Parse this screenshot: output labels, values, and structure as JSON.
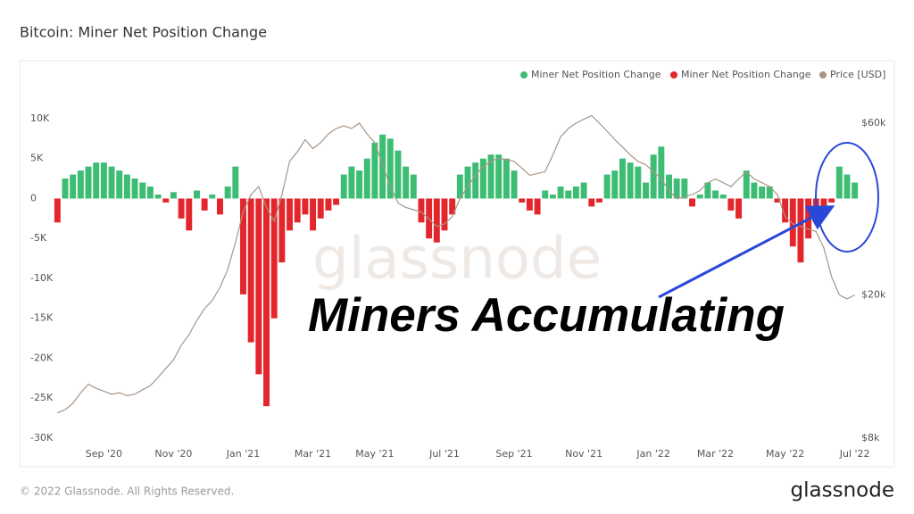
{
  "chart_data": {
    "type": "bar",
    "title": "Bitcoin: Miner Net Position Change",
    "watermark": "glassnode",
    "annotation": "Miners Accumulating",
    "footer": "© 2022 Glassnode. All Rights Reserved.",
    "logo": "glassnode",
    "legend": "top-right",
    "grid": false,
    "categories": [
      null,
      null,
      null,
      null,
      null,
      null,
      "Sep '20",
      null,
      null,
      null,
      null,
      null,
      null,
      null,
      null,
      "Nov '20",
      null,
      null,
      null,
      null,
      null,
      null,
      null,
      null,
      "Jan '21",
      null,
      null,
      null,
      null,
      null,
      null,
      null,
      null,
      "Mar '21",
      null,
      null,
      null,
      null,
      null,
      null,
      null,
      "May '21",
      null,
      null,
      null,
      null,
      null,
      null,
      null,
      null,
      "Jul '21",
      null,
      null,
      null,
      null,
      null,
      null,
      null,
      null,
      "Sep '21",
      null,
      null,
      null,
      null,
      null,
      null,
      null,
      null,
      "Nov '21",
      null,
      null,
      null,
      null,
      null,
      null,
      null,
      null,
      "Jan '22",
      null,
      null,
      null,
      null,
      null,
      null,
      null,
      "Mar '22",
      null,
      null,
      null,
      null,
      null,
      null,
      null,
      null,
      "May '22",
      null,
      null,
      null,
      null,
      null,
      null,
      null,
      null,
      "Jul '22"
    ],
    "series": [
      {
        "name": "Miner Net Position Change",
        "color": "#3dbc74",
        "values": [
          null,
          2500,
          3000,
          3500,
          4000,
          4500,
          4500,
          4000,
          3500,
          3000,
          2500,
          2000,
          1500,
          500,
          null,
          800,
          null,
          null,
          1000,
          null,
          500,
          null,
          1500,
          4000,
          null,
          null,
          null,
          null,
          null,
          null,
          null,
          null,
          null,
          null,
          null,
          null,
          null,
          3000,
          4000,
          3500,
          5000,
          7000,
          8000,
          7500,
          6000,
          4000,
          3000,
          null,
          null,
          null,
          null,
          null,
          3000,
          4000,
          4500,
          5000,
          5500,
          5500,
          5000,
          3500,
          null,
          null,
          null,
          1000,
          500,
          1500,
          1000,
          1500,
          2000,
          null,
          null,
          3000,
          3500,
          5000,
          4500,
          4000,
          2000,
          5500,
          6500,
          3000,
          2500,
          2500,
          null,
          500,
          2000,
          1000,
          500,
          null,
          null,
          3500,
          2000,
          1500,
          1500,
          null,
          null,
          null,
          null,
          null,
          null,
          null,
          null,
          4000,
          3000,
          2000
        ]
      },
      {
        "name": "Miner Net Position Change",
        "color": "#e3262b",
        "values": [
          -3000,
          null,
          null,
          null,
          null,
          null,
          null,
          null,
          null,
          null,
          null,
          null,
          null,
          null,
          -500,
          null,
          -2500,
          -4000,
          null,
          -1500,
          null,
          -2000,
          null,
          null,
          -12000,
          -18000,
          -22000,
          -26000,
          -15000,
          -8000,
          -4000,
          -3000,
          -2000,
          -4000,
          -2500,
          -1500,
          -800,
          null,
          null,
          null,
          null,
          null,
          null,
          null,
          null,
          null,
          null,
          -3000,
          -5000,
          -5500,
          -4000,
          -2000,
          null,
          null,
          null,
          null,
          null,
          null,
          null,
          null,
          -500,
          -1500,
          -2000,
          null,
          null,
          null,
          null,
          null,
          null,
          -1000,
          -500,
          null,
          null,
          null,
          null,
          null,
          null,
          null,
          null,
          null,
          null,
          null,
          -1000,
          null,
          null,
          null,
          null,
          -1500,
          -2500,
          null,
          null,
          null,
          null,
          -500,
          -3000,
          -6000,
          -8000,
          -5000,
          -3000,
          -2000,
          -500,
          null,
          null,
          null
        ]
      },
      {
        "name": "Price [USD]",
        "color": "#a89485",
        "axis": "y2",
        "values": [
          9400,
          9600,
          10000,
          10700,
          11300,
          11000,
          10800,
          10600,
          10700,
          10500,
          10600,
          10900,
          11200,
          11800,
          12500,
          13200,
          14500,
          15500,
          17000,
          18300,
          19300,
          21000,
          23500,
          28000,
          34000,
          38000,
          40000,
          35000,
          32000,
          38000,
          47000,
          50000,
          54000,
          51000,
          53000,
          56000,
          58000,
          59000,
          58000,
          60000,
          56000,
          53000,
          46000,
          40000,
          36000,
          35000,
          34500,
          34000,
          32500,
          31000,
          31500,
          33000,
          37000,
          40000,
          43000,
          45500,
          47000,
          48000,
          47500,
          47000,
          45000,
          43000,
          43500,
          44000,
          49000,
          55000,
          58000,
          60000,
          61500,
          63000,
          60000,
          57000,
          54000,
          51500,
          49000,
          47000,
          46000,
          44000,
          42000,
          39000,
          37000,
          37500,
          38000,
          39000,
          41000,
          42000,
          41000,
          40000,
          42000,
          44000,
          42000,
          41000,
          40000,
          38000,
          33000,
          31500,
          31000,
          30500,
          30000,
          27000,
          22500,
          20000,
          19500,
          20000
        ]
      }
    ],
    "ylim": [
      -30000,
      11000
    ],
    "yticks": [
      {
        "value": 10000,
        "label": "10K"
      },
      {
        "value": 5000,
        "label": "5K"
      },
      0,
      {
        "value": -5000,
        "label": "-5K"
      },
      {
        "value": -10000,
        "label": "-10K"
      },
      {
        "value": -15000,
        "label": "-15K"
      },
      {
        "value": -20000,
        "label": "-20K"
      },
      {
        "value": -25000,
        "label": "-25K"
      },
      {
        "value": -30000,
        "label": "-30K"
      }
    ],
    "y2scale": "log",
    "y2lim": [
      8000,
      65000
    ],
    "y2ticks": [
      {
        "value": 60000,
        "label": "$60k"
      },
      {
        "value": 20000,
        "label": "$20k"
      },
      {
        "value": 8000,
        "label": "$8k"
      }
    ]
  }
}
